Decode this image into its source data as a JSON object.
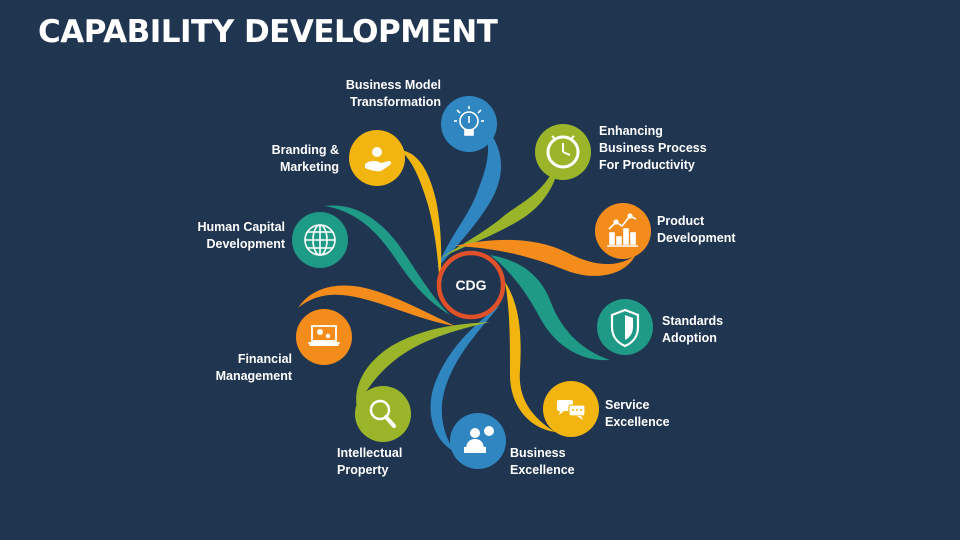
{
  "title": "CAPABILITY DEVELOPMENT",
  "center": {
    "label": "CDG",
    "ring_color": "#e0512a"
  },
  "items": [
    {
      "label": "Business Model\nTransformation",
      "color": "#2f86c0",
      "icon": "lightbulb-icon"
    },
    {
      "label": "Enhancing\nBusiness Process\nFor Productivity",
      "color": "#9bb52a",
      "icon": "clock-icon"
    },
    {
      "label": "Product\nDevelopment",
      "color": "#f48c1c",
      "icon": "growth-chart-icon"
    },
    {
      "label": "Standards\nAdoption",
      "color": "#1f9a86",
      "icon": "shield-icon"
    },
    {
      "label": "Service\nExcellence",
      "color": "#f2b50f",
      "icon": "chat-bubbles-icon"
    },
    {
      "label": "Business\nExcellence",
      "color": "#2f86c0",
      "icon": "presenter-icon"
    },
    {
      "label": "Intellectual\nProperty",
      "color": "#9bb52a",
      "icon": "magnifier-icon"
    },
    {
      "label": "Financial\nManagement",
      "color": "#f48c1c",
      "icon": "laptop-gears-icon"
    },
    {
      "label": "Human Capital\nDevelopment",
      "color": "#1f9a86",
      "icon": "globe-icon"
    },
    {
      "label": "Branding &\nMarketing",
      "color": "#f2b50f",
      "icon": "hand-coin-icon"
    }
  ]
}
